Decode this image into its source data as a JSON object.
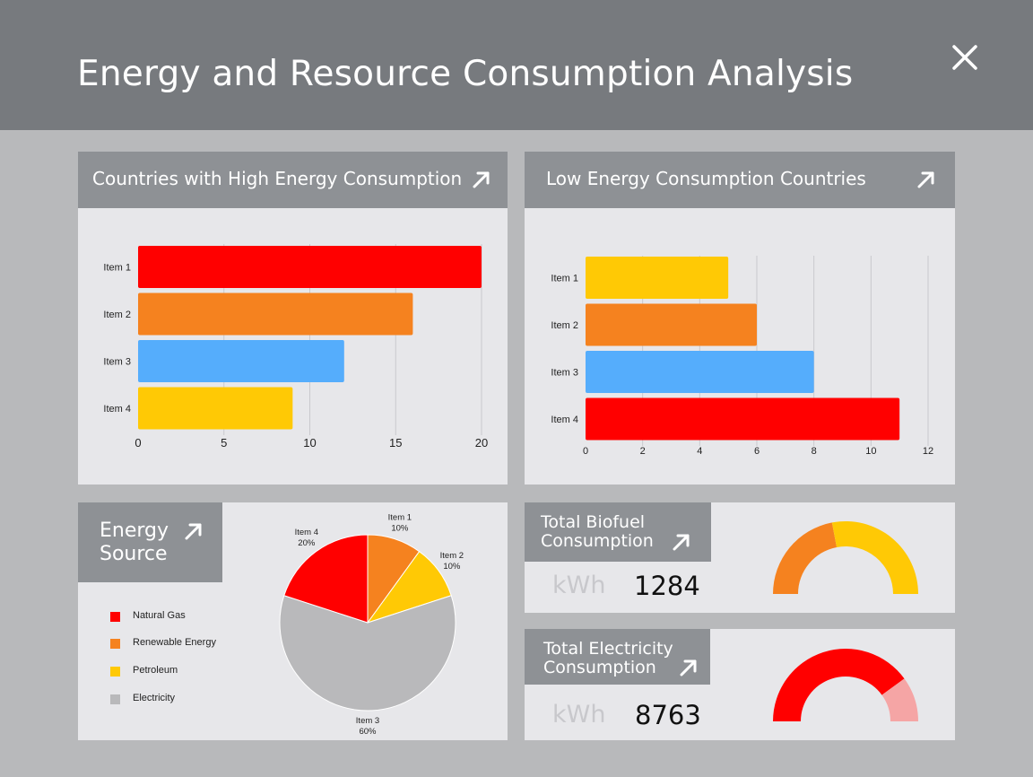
{
  "header": {
    "title": "Energy and Resource Consumption Analysis",
    "close_icon": "close-icon"
  },
  "colors": {
    "red": "#ff0000",
    "orange": "#f5821f",
    "blue": "#55adfc",
    "yellow": "#ffc905",
    "gray": "#b9b9bb",
    "pink": "#f5a5a5"
  },
  "high_panel": {
    "title": "Countries with High Energy Consumption",
    "arrow_icon": "arrow-up-right-icon"
  },
  "low_panel": {
    "title": "Low Energy Consumption Countries",
    "arrow_icon": "arrow-up-right-icon"
  },
  "source_panel": {
    "title_line1": "Energy",
    "title_line2": "Source",
    "legend": [
      {
        "label": "Natural Gas",
        "color": "#ff0000"
      },
      {
        "label": "Renewable Energy",
        "color": "#f5821f"
      },
      {
        "label": "Petroleum",
        "color": "#ffc905"
      },
      {
        "label": "Electricity",
        "color": "#b9b9bb"
      }
    ]
  },
  "biofuel_panel": {
    "title_line1": "Total Biofuel",
    "title_line2": "Consumption",
    "unit": "kWh",
    "value": "1284",
    "gauge_fraction": 0.44
  },
  "electricity_panel": {
    "title_line1": "Total Electricity",
    "title_line2": "Consumption",
    "unit": "kWh",
    "value": "8763",
    "gauge_fraction": 0.8
  },
  "chart_data": [
    {
      "type": "bar",
      "orientation": "horizontal",
      "title": "Countries with High Energy Consumption",
      "categories": [
        "Item 1",
        "Item 2",
        "Item 3",
        "Item 4"
      ],
      "values": [
        20,
        16,
        12,
        9
      ],
      "colors": [
        "#ff0000",
        "#f5821f",
        "#55adfc",
        "#ffc905"
      ],
      "xlim": [
        0,
        20
      ],
      "xticks": [
        0,
        5,
        10,
        15,
        20
      ],
      "grid": true
    },
    {
      "type": "bar",
      "orientation": "horizontal",
      "title": "Low Energy Consumption Countries",
      "categories": [
        "Item 1",
        "Item 2",
        "Item 3",
        "Item 4"
      ],
      "values": [
        5,
        6,
        8,
        11
      ],
      "colors": [
        "#ffc905",
        "#f5821f",
        "#55adfc",
        "#ff0000"
      ],
      "xlim": [
        0,
        12
      ],
      "xticks": [
        0,
        2,
        4,
        6,
        8,
        10,
        12
      ],
      "grid": true
    },
    {
      "type": "pie",
      "title": "Energy Source",
      "slices": [
        {
          "label": "Item 1",
          "value": 10,
          "pct": "10%",
          "color": "#f5821f"
        },
        {
          "label": "Item 2",
          "value": 10,
          "pct": "10%",
          "color": "#ffc905"
        },
        {
          "label": "Item 3",
          "value": 60,
          "pct": "60%",
          "color": "#b9b9bb"
        },
        {
          "label": "Item 4",
          "value": 20,
          "pct": "20%",
          "color": "#ff0000"
        }
      ]
    }
  ]
}
